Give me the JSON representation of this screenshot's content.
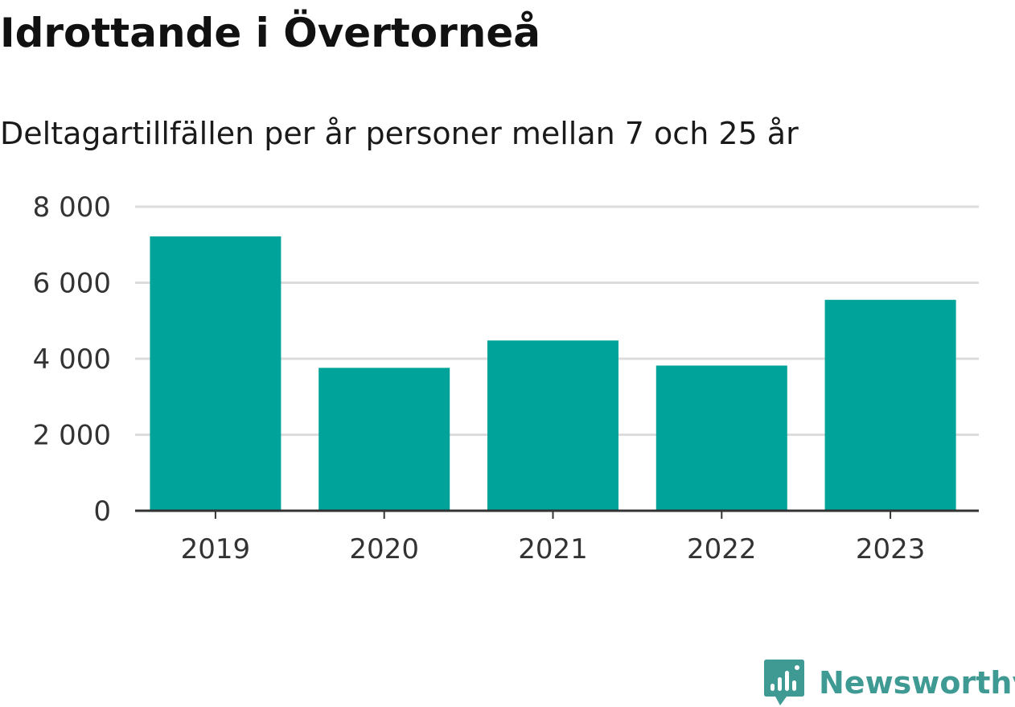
{
  "chart_data": {
    "type": "bar",
    "title": "Idrottande i Övertorneå",
    "subtitle": "Deltagartillfällen per år personer mellan 7 och 25 år",
    "categories": [
      "2019",
      "2020",
      "2021",
      "2022",
      "2023"
    ],
    "values": [
      7220,
      3760,
      4480,
      3820,
      5550
    ],
    "ylim": [
      0,
      8000
    ],
    "yticks": [
      0,
      2000,
      4000,
      6000,
      8000
    ],
    "ytick_labels": [
      "0",
      "2 000",
      "4 000",
      "6 000",
      "8 000"
    ],
    "grid": true,
    "bar_color": "#00a39a",
    "grid_color": "#dcdcdc",
    "axis_color": "#333333"
  },
  "brand": {
    "name": "Newsworthy",
    "icon": "newsworthy-logo-icon",
    "color": "#3f9a94"
  }
}
